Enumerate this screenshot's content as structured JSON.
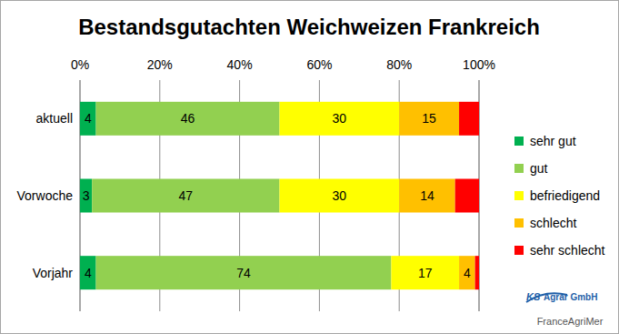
{
  "chart_data": {
    "type": "bar",
    "title": "Bestandsgutachten Weichweizen Frankreich",
    "orientation": "horizontal",
    "stacked": true,
    "data_labels": true,
    "grid": true,
    "legend": "right",
    "categories": [
      "aktuell",
      "Vorwoche",
      "Vorjahr"
    ],
    "xlim": [
      0,
      100
    ],
    "xticks": [
      {
        "value": 0,
        "label": "0%"
      },
      {
        "value": 20,
        "label": "20%"
      },
      {
        "value": 40,
        "label": "40%"
      },
      {
        "value": 60,
        "label": "60%"
      },
      {
        "value": 80,
        "label": "80%"
      },
      {
        "value": 100,
        "label": "100%"
      }
    ],
    "series": [
      {
        "name": "sehr gut",
        "color": "#00b050",
        "values": [
          4,
          3,
          4
        ]
      },
      {
        "name": "gut",
        "color": "#92d050",
        "values": [
          46,
          47,
          74
        ]
      },
      {
        "name": "befriedigend",
        "color": "#ffff00",
        "values": [
          30,
          30,
          17
        ]
      },
      {
        "name": "schlecht",
        "color": "#ffc000",
        "values": [
          15,
          14,
          4
        ]
      },
      {
        "name": "sehr schlecht",
        "color": "#ff0000",
        "values": [
          5,
          6,
          1
        ],
        "value_labels": [
          null,
          null,
          null
        ]
      }
    ],
    "annotations": [
      "KS",
      "Agrar GmbH",
      "FranceAgriMer"
    ]
  }
}
